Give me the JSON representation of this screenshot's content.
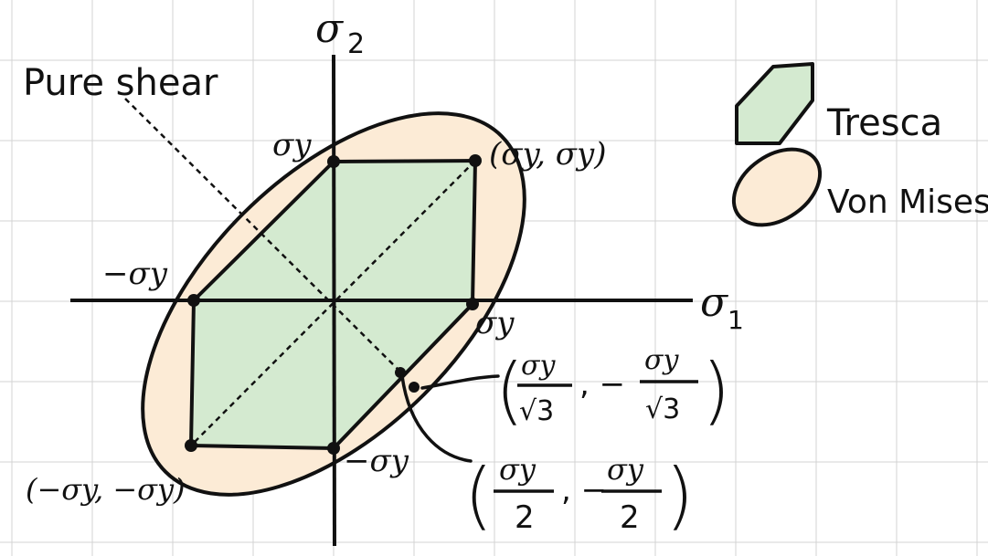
{
  "diagram": {
    "kind": "yield-surface-plot",
    "axes": {
      "horizontal_label": "σ",
      "horizontal_subscript": "1",
      "vertical_label": "σ",
      "vertical_subscript": "2"
    },
    "pure_shear_label": "Pure shear",
    "legend": {
      "tresca": "Tresca",
      "von_mises": "Von Mises"
    },
    "points": {
      "top": "σy",
      "top_right": "(σy, σy)",
      "left": "−σy",
      "right": "σy",
      "bottom": "−σy",
      "bottom_left": "(−σy, −σy)"
    },
    "annotations": {
      "vm_shear_open": "(",
      "vm_shear_num1": "σy",
      "vm_shear_den1": "√3",
      "vm_shear_sep": ", −",
      "vm_shear_num2": "σy",
      "vm_shear_den2": "√3",
      "vm_shear_close": ")",
      "tr_shear_open": "(",
      "tr_shear_num1": "σy",
      "tr_shear_den1": "2",
      "tr_shear_sep": ", −",
      "tr_shear_num2": "σy",
      "tr_shear_den2": "2",
      "tr_shear_close": ")"
    },
    "colors": {
      "tresca_fill": "#d4ead0",
      "von_mises_fill": "#fcebd6",
      "ink": "#111111",
      "grid": "#d3d3d3"
    }
  }
}
